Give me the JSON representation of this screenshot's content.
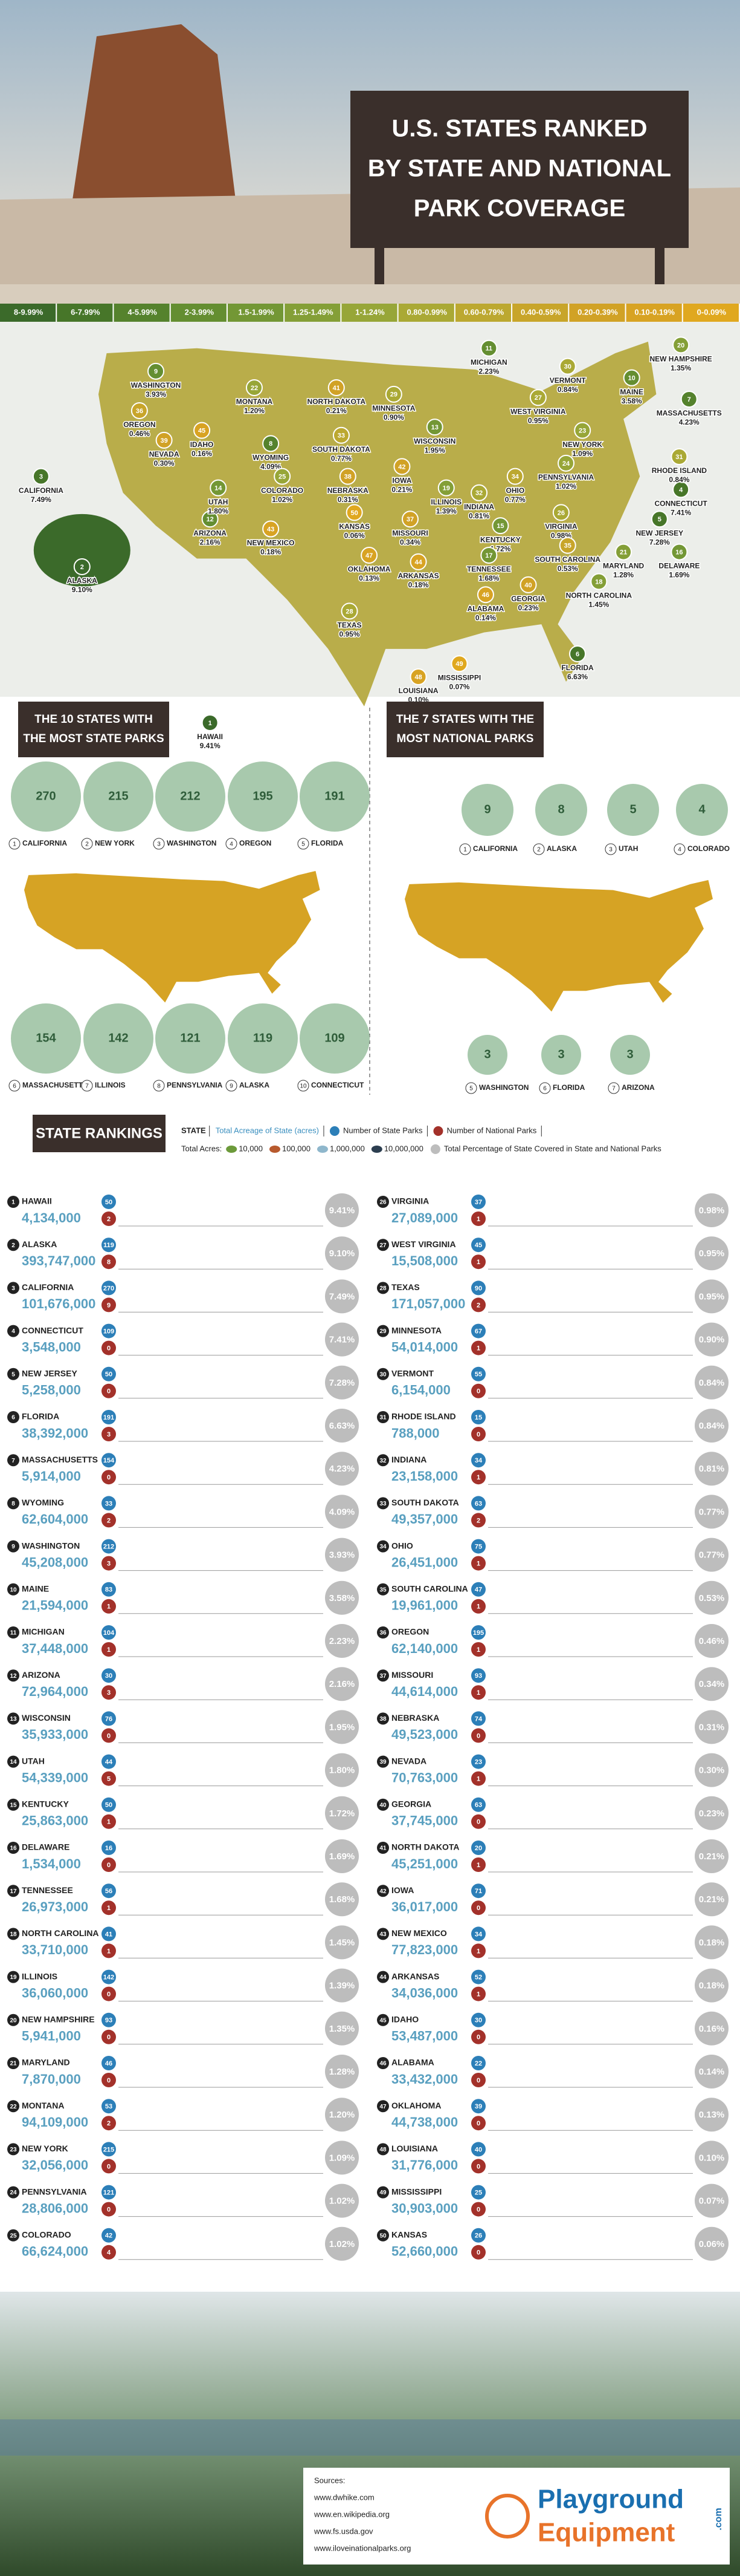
{
  "header": {
    "title_lines": [
      "U.S. STATES RANKED",
      "BY STATE AND NATIONAL",
      "PARK COVERAGE"
    ]
  },
  "legend": [
    {
      "label": "8-9.99%",
      "color": "#3b6a2a"
    },
    {
      "label": "6-7.99%",
      "color": "#477629"
    },
    {
      "label": "4-5.99%",
      "color": "#55822d"
    },
    {
      "label": "2-3.99%",
      "color": "#648e31"
    },
    {
      "label": "1.5-1.99%",
      "color": "#739735"
    },
    {
      "label": "1.25-1.49%",
      "color": "#849f37"
    },
    {
      "label": "1-1.24%",
      "color": "#97a638"
    },
    {
      "label": "0.80-0.99%",
      "color": "#aaa935"
    },
    {
      "label": "0.60-0.79%",
      "color": "#bca830"
    },
    {
      "label": "0.40-0.59%",
      "color": "#c8a52a"
    },
    {
      "label": "0.20-0.39%",
      "color": "#d1a226"
    },
    {
      "label": "0.10-0.19%",
      "color": "#d8a323"
    },
    {
      "label": "0-0.09%",
      "color": "#e0a81f"
    }
  ],
  "most_state_parks": {
    "title_lines": [
      "THE 10 STATES WITH",
      "THE MOST STATE PARKS"
    ],
    "items": [
      {
        "rank": 1,
        "state": "CALIFORNIA",
        "parks": 270
      },
      {
        "rank": 2,
        "state": "NEW YORK",
        "parks": 215
      },
      {
        "rank": 3,
        "state": "WASHINGTON",
        "parks": 212
      },
      {
        "rank": 4,
        "state": "OREGON",
        "parks": 195
      },
      {
        "rank": 5,
        "state": "FLORIDA",
        "parks": 191
      },
      {
        "rank": 6,
        "state": "MASSACHUSETTS",
        "parks": 154
      },
      {
        "rank": 7,
        "state": "ILLINOIS",
        "parks": 142
      },
      {
        "rank": 8,
        "state": "PENNSYLVANIA",
        "parks": 121
      },
      {
        "rank": 9,
        "state": "ALASKA",
        "parks": 119
      },
      {
        "rank": 10,
        "state": "CONNECTICUT",
        "parks": 109
      }
    ]
  },
  "most_national_parks": {
    "title_lines": [
      "THE 7 STATES WITH THE",
      "MOST NATIONAL PARKS"
    ],
    "items": [
      {
        "rank": 1,
        "state": "CALIFORNIA",
        "parks": 9
      },
      {
        "rank": 2,
        "state": "ALASKA",
        "parks": 8
      },
      {
        "rank": 3,
        "state": "UTAH",
        "parks": 5
      },
      {
        "rank": 4,
        "state": "COLORADO",
        "parks": 4
      },
      {
        "rank": 5,
        "state": "WASHINGTON",
        "parks": 3
      },
      {
        "rank": 6,
        "state": "FLORIDA",
        "parks": 3
      },
      {
        "rank": 7,
        "state": "ARIZONA",
        "parks": 3
      }
    ]
  },
  "rankings": {
    "title": "STATE RANKINGS",
    "key": {
      "state": "STATE",
      "acreage": "Total Acreage of State (acres)",
      "state_parks": "Number of State Parks",
      "national_parks": "Number of National Parks",
      "total_acres": "Total Acres:",
      "units": [
        "10,000",
        "100,000",
        "1,000,000",
        "10,000,000"
      ],
      "percentage": "Total Percentage of State Covered in State and National Parks"
    },
    "states": [
      {
        "rank": 1,
        "state": "HAWAII",
        "acres": "4,134,000",
        "state_parks": 50,
        "national_parks": 2,
        "pct": "9.41%",
        "color": "#3b6a2a"
      },
      {
        "rank": 2,
        "state": "ALASKA",
        "acres": "393,747,000",
        "state_parks": 119,
        "national_parks": 8,
        "pct": "9.10%",
        "color": "#3b6a2a"
      },
      {
        "rank": 3,
        "state": "CALIFORNIA",
        "acres": "101,676,000",
        "state_parks": 270,
        "national_parks": 9,
        "pct": "7.49%",
        "color": "#477629"
      },
      {
        "rank": 4,
        "state": "CONNECTICUT",
        "acres": "3,548,000",
        "state_parks": 109,
        "national_parks": 0,
        "pct": "7.41%",
        "color": "#477629"
      },
      {
        "rank": 5,
        "state": "NEW JERSEY",
        "acres": "5,258,000",
        "state_parks": 50,
        "national_parks": 0,
        "pct": "7.28%",
        "color": "#477629"
      },
      {
        "rank": 6,
        "state": "FLORIDA",
        "acres": "38,392,000",
        "state_parks": 191,
        "national_parks": 3,
        "pct": "6.63%",
        "color": "#477629"
      },
      {
        "rank": 7,
        "state": "MASSACHUSETTS",
        "acres": "5,914,000",
        "state_parks": 154,
        "national_parks": 0,
        "pct": "4.23%",
        "color": "#55822d"
      },
      {
        "rank": 8,
        "state": "WYOMING",
        "acres": "62,604,000",
        "state_parks": 33,
        "national_parks": 2,
        "pct": "4.09%",
        "color": "#55822d"
      },
      {
        "rank": 9,
        "state": "WASHINGTON",
        "acres": "45,208,000",
        "state_parks": 212,
        "national_parks": 3,
        "pct": "3.93%",
        "color": "#648e31"
      },
      {
        "rank": 10,
        "state": "MAINE",
        "acres": "21,594,000",
        "state_parks": 83,
        "national_parks": 1,
        "pct": "3.58%",
        "color": "#648e31"
      },
      {
        "rank": 11,
        "state": "MICHIGAN",
        "acres": "37,448,000",
        "state_parks": 104,
        "national_parks": 1,
        "pct": "2.23%",
        "color": "#648e31"
      },
      {
        "rank": 12,
        "state": "ARIZONA",
        "acres": "72,964,000",
        "state_parks": 30,
        "national_parks": 3,
        "pct": "2.16%",
        "color": "#648e31"
      },
      {
        "rank": 13,
        "state": "WISCONSIN",
        "acres": "35,933,000",
        "state_parks": 76,
        "national_parks": 0,
        "pct": "1.95%",
        "color": "#739735"
      },
      {
        "rank": 14,
        "state": "UTAH",
        "acres": "54,339,000",
        "state_parks": 44,
        "national_parks": 5,
        "pct": "1.80%",
        "color": "#739735"
      },
      {
        "rank": 15,
        "state": "KENTUCKY",
        "acres": "25,863,000",
        "state_parks": 50,
        "national_parks": 1,
        "pct": "1.72%",
        "color": "#739735"
      },
      {
        "rank": 16,
        "state": "DELAWARE",
        "acres": "1,534,000",
        "state_parks": 16,
        "national_parks": 0,
        "pct": "1.69%",
        "color": "#739735"
      },
      {
        "rank": 17,
        "state": "TENNESSEE",
        "acres": "26,973,000",
        "state_parks": 56,
        "national_parks": 1,
        "pct": "1.68%",
        "color": "#739735"
      },
      {
        "rank": 18,
        "state": "NORTH CAROLINA",
        "acres": "33,710,000",
        "state_parks": 41,
        "national_parks": 1,
        "pct": "1.45%",
        "color": "#849f37"
      },
      {
        "rank": 19,
        "state": "ILLINOIS",
        "acres": "36,060,000",
        "state_parks": 142,
        "national_parks": 0,
        "pct": "1.39%",
        "color": "#849f37"
      },
      {
        "rank": 20,
        "state": "NEW HAMPSHIRE",
        "acres": "5,941,000",
        "state_parks": 93,
        "national_parks": 0,
        "pct": "1.35%",
        "color": "#849f37"
      },
      {
        "rank": 21,
        "state": "MARYLAND",
        "acres": "7,870,000",
        "state_parks": 46,
        "national_parks": 0,
        "pct": "1.28%",
        "color": "#849f37"
      },
      {
        "rank": 22,
        "state": "MONTANA",
        "acres": "94,109,000",
        "state_parks": 53,
        "national_parks": 2,
        "pct": "1.20%",
        "color": "#97a638"
      },
      {
        "rank": 23,
        "state": "NEW YORK",
        "acres": "32,056,000",
        "state_parks": 215,
        "national_parks": 0,
        "pct": "1.09%",
        "color": "#97a638"
      },
      {
        "rank": 24,
        "state": "PENNSYLVANIA",
        "acres": "28,806,000",
        "state_parks": 121,
        "national_parks": 0,
        "pct": "1.02%",
        "color": "#97a638"
      },
      {
        "rank": 25,
        "state": "COLORADO",
        "acres": "66,624,000",
        "state_parks": 42,
        "national_parks": 4,
        "pct": "1.02%",
        "color": "#97a638"
      },
      {
        "rank": 26,
        "state": "VIRGINIA",
        "acres": "27,089,000",
        "state_parks": 37,
        "national_parks": 1,
        "pct": "0.98%",
        "color": "#aaa935"
      },
      {
        "rank": 27,
        "state": "WEST VIRGINIA",
        "acres": "15,508,000",
        "state_parks": 45,
        "national_parks": 1,
        "pct": "0.95%",
        "color": "#aaa935"
      },
      {
        "rank": 28,
        "state": "TEXAS",
        "acres": "171,057,000",
        "state_parks": 90,
        "national_parks": 2,
        "pct": "0.95%",
        "color": "#aaa935"
      },
      {
        "rank": 29,
        "state": "MINNESOTA",
        "acres": "54,014,000",
        "state_parks": 67,
        "national_parks": 1,
        "pct": "0.90%",
        "color": "#aaa935"
      },
      {
        "rank": 30,
        "state": "VERMONT",
        "acres": "6,154,000",
        "state_parks": 55,
        "national_parks": 0,
        "pct": "0.84%",
        "color": "#aaa935"
      },
      {
        "rank": 31,
        "state": "RHODE ISLAND",
        "acres": "788,000",
        "state_parks": 15,
        "national_parks": 0,
        "pct": "0.84%",
        "color": "#aaa935"
      },
      {
        "rank": 32,
        "state": "INDIANA",
        "acres": "23,158,000",
        "state_parks": 34,
        "national_parks": 1,
        "pct": "0.81%",
        "color": "#aaa935"
      },
      {
        "rank": 33,
        "state": "SOUTH DAKOTA",
        "acres": "49,357,000",
        "state_parks": 63,
        "national_parks": 2,
        "pct": "0.77%",
        "color": "#bca830"
      },
      {
        "rank": 34,
        "state": "OHIO",
        "acres": "26,451,000",
        "state_parks": 75,
        "national_parks": 1,
        "pct": "0.77%",
        "color": "#bca830"
      },
      {
        "rank": 35,
        "state": "SOUTH CAROLINA",
        "acres": "19,961,000",
        "state_parks": 47,
        "national_parks": 1,
        "pct": "0.53%",
        "color": "#c8a52a"
      },
      {
        "rank": 36,
        "state": "OREGON",
        "acres": "62,140,000",
        "state_parks": 195,
        "national_parks": 1,
        "pct": "0.46%",
        "color": "#c8a52a"
      },
      {
        "rank": 37,
        "state": "MISSOURI",
        "acres": "44,614,000",
        "state_parks": 93,
        "national_parks": 1,
        "pct": "0.34%",
        "color": "#d1a226"
      },
      {
        "rank": 38,
        "state": "NEBRASKA",
        "acres": "49,523,000",
        "state_parks": 74,
        "national_parks": 0,
        "pct": "0.31%",
        "color": "#d1a226"
      },
      {
        "rank": 39,
        "state": "NEVADA",
        "acres": "70,763,000",
        "state_parks": 23,
        "national_parks": 1,
        "pct": "0.30%",
        "color": "#d1a226"
      },
      {
        "rank": 40,
        "state": "GEORGIA",
        "acres": "37,745,000",
        "state_parks": 63,
        "national_parks": 0,
        "pct": "0.23%",
        "color": "#d1a226"
      },
      {
        "rank": 41,
        "state": "NORTH DAKOTA",
        "acres": "45,251,000",
        "state_parks": 20,
        "national_parks": 1,
        "pct": "0.21%",
        "color": "#d1a226"
      },
      {
        "rank": 42,
        "state": "IOWA",
        "acres": "36,017,000",
        "state_parks": 71,
        "national_parks": 0,
        "pct": "0.21%",
        "color": "#d1a226"
      },
      {
        "rank": 43,
        "state": "NEW MEXICO",
        "acres": "77,823,000",
        "state_parks": 34,
        "national_parks": 1,
        "pct": "0.18%",
        "color": "#d8a323"
      },
      {
        "rank": 44,
        "state": "ARKANSAS",
        "acres": "34,036,000",
        "state_parks": 52,
        "national_parks": 1,
        "pct": "0.18%",
        "color": "#d8a323"
      },
      {
        "rank": 45,
        "state": "IDAHO",
        "acres": "53,487,000",
        "state_parks": 30,
        "national_parks": 0,
        "pct": "0.16%",
        "color": "#d8a323"
      },
      {
        "rank": 46,
        "state": "ALABAMA",
        "acres": "33,432,000",
        "state_parks": 22,
        "national_parks": 0,
        "pct": "0.14%",
        "color": "#d8a323"
      },
      {
        "rank": 47,
        "state": "OKLAHOMA",
        "acres": "44,738,000",
        "state_parks": 39,
        "national_parks": 0,
        "pct": "0.13%",
        "color": "#d8a323"
      },
      {
        "rank": 48,
        "state": "LOUISIANA",
        "acres": "31,776,000",
        "state_parks": 40,
        "national_parks": 0,
        "pct": "0.10%",
        "color": "#d8a323"
      },
      {
        "rank": 49,
        "state": "MISSISSIPPI",
        "acres": "30,903,000",
        "state_parks": 25,
        "national_parks": 0,
        "pct": "0.07%",
        "color": "#e0a81f"
      },
      {
        "rank": 50,
        "state": "KANSAS",
        "acres": "52,660,000",
        "state_parks": 26,
        "national_parks": 0,
        "pct": "0.06%",
        "color": "#e0a81f"
      }
    ]
  },
  "sources": {
    "title": "Sources:",
    "links": [
      "www.dwhike.com",
      "www.en.wikipedia.org",
      "www.fs.usda.gov",
      "www.iloveinationalparks.org"
    ]
  },
  "logo": {
    "line1": "Playground",
    "line2": "Equipment",
    "suffix": ".com"
  }
}
